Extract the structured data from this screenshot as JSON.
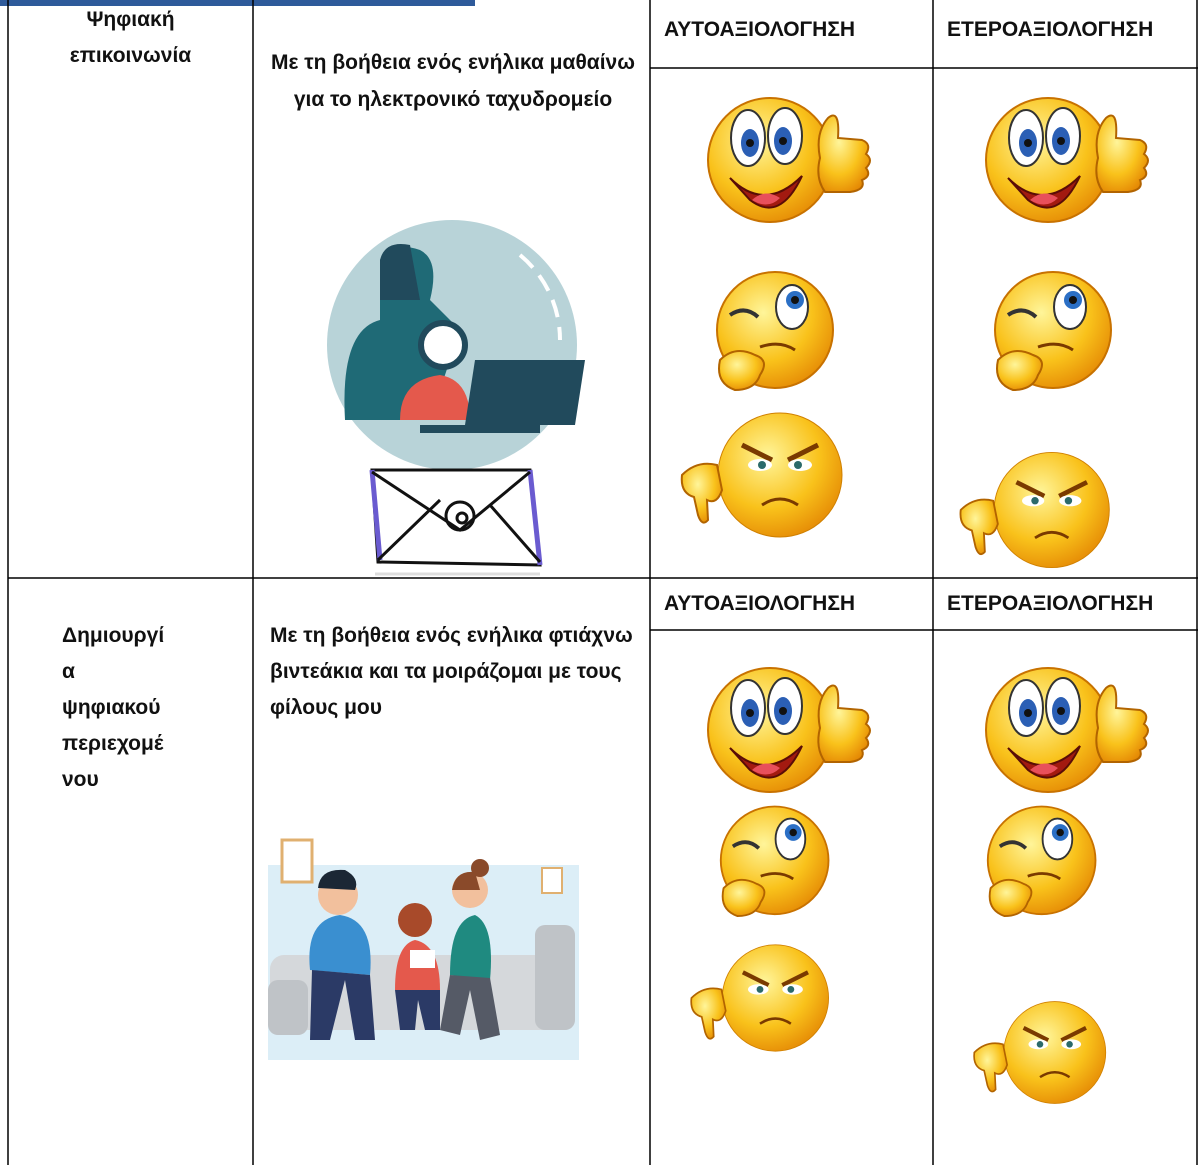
{
  "rows": [
    {
      "topic_lines": [
        "Ψηφιακή",
        "επικοινωνία"
      ],
      "description": "Με τη βοήθεια ενός ενήλικα μαθαίνω για το ηλεκτρονικό ταχυδρομείο",
      "self_assessment": "ΑΥΤΟΑΞΙΟΛΟΓΗΣΗ",
      "peer_assessment": "ΕΤΕΡΟΑΞΙΟΛΟΓΗΣΗ"
    },
    {
      "topic_lines": [
        "Δημιουργί",
        "α",
        "ψηφιακού",
        "περιεχομέ",
        "νου"
      ],
      "description": "Με τη βοήθεια ενός ενήλικα φτιάχνω βιντεάκια και τα μοιράζομαι με τους φίλους μου",
      "self_assessment": "ΑΥΤΟΑΞΙΟΛΟΓΗΣΗ",
      "peer_assessment": "ΕΤΕΡΟΑΞΙΟΛΟΓΗΣΗ"
    }
  ]
}
